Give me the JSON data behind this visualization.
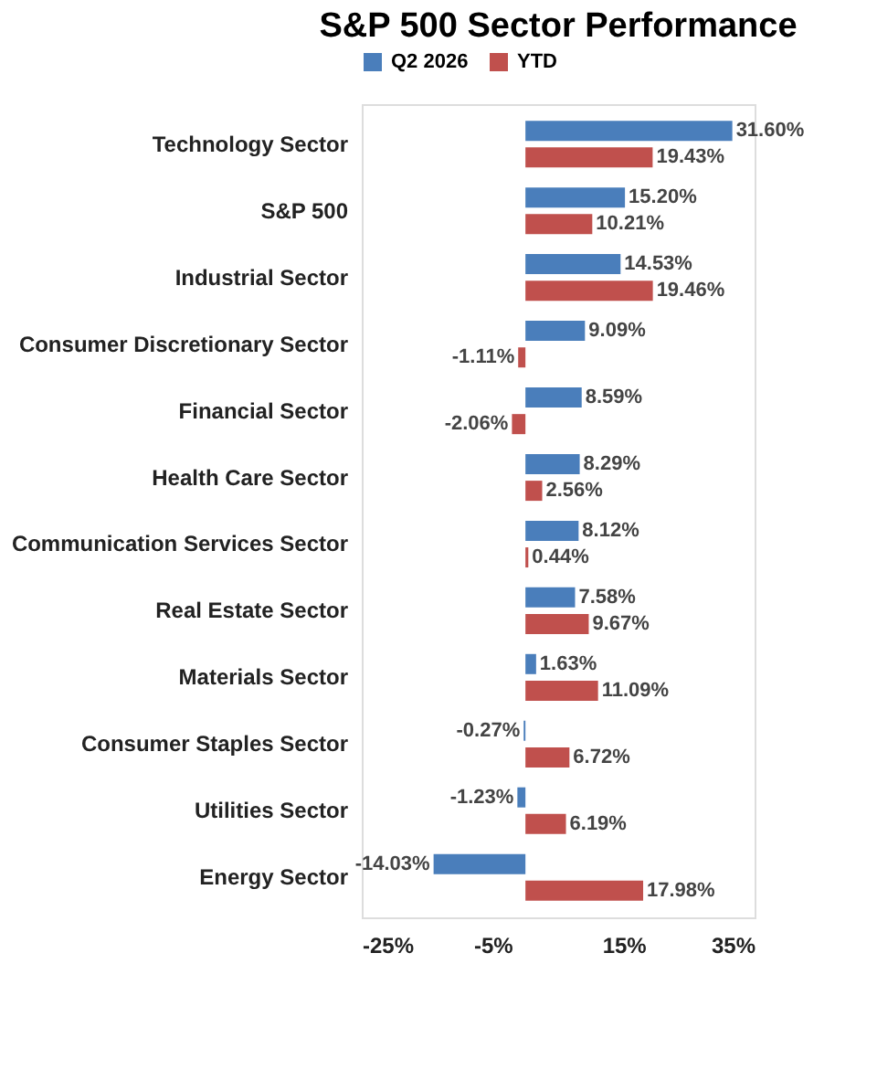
{
  "chart_data": {
    "type": "bar",
    "orientation": "horizontal",
    "title": "S&P 500 Sector Performance",
    "categories": [
      "Technology Sector",
      "S&P 500",
      "Industrial Sector",
      "Consumer Discretionary Sector",
      "Financial Sector",
      "Health Care Sector",
      "Communication Services Sector",
      "Real Estate Sector",
      "Materials Sector",
      "Consumer Staples Sector",
      "Utilities Sector",
      "Energy Sector"
    ],
    "series": [
      {
        "name": "Q2 2026",
        "color": "#4a7ebb",
        "values": [
          31.6,
          15.2,
          14.53,
          9.09,
          8.59,
          8.29,
          8.12,
          7.58,
          1.63,
          -0.27,
          -1.23,
          -14.03
        ],
        "value_labels": [
          "31.60%",
          "15.20%",
          "14.53%",
          "9.09%",
          "8.59%",
          "8.29%",
          "8.12%",
          "7.58%",
          "1.63%",
          "-0.27%",
          "-1.23%",
          "-14.03%"
        ]
      },
      {
        "name": "YTD",
        "color": "#c0504d",
        "values": [
          19.43,
          10.21,
          19.46,
          -1.11,
          -2.06,
          2.56,
          0.44,
          9.67,
          11.09,
          6.72,
          6.19,
          17.98
        ],
        "value_labels": [
          "19.43%",
          "10.21%",
          "19.46%",
          "-1.11%",
          "-2.06%",
          "2.56%",
          "0.44%",
          "9.67%",
          "11.09%",
          "6.72%",
          "6.19%",
          "17.98%"
        ]
      }
    ],
    "xlim": [
      -25,
      35
    ],
    "xticks": [
      {
        "value": -25,
        "label": "-25%"
      },
      {
        "value": -5,
        "label": "-5%"
      },
      {
        "value": 15,
        "label": "15%"
      },
      {
        "value": 35,
        "label": "35%"
      }
    ],
    "grid": false,
    "legend": "top"
  }
}
